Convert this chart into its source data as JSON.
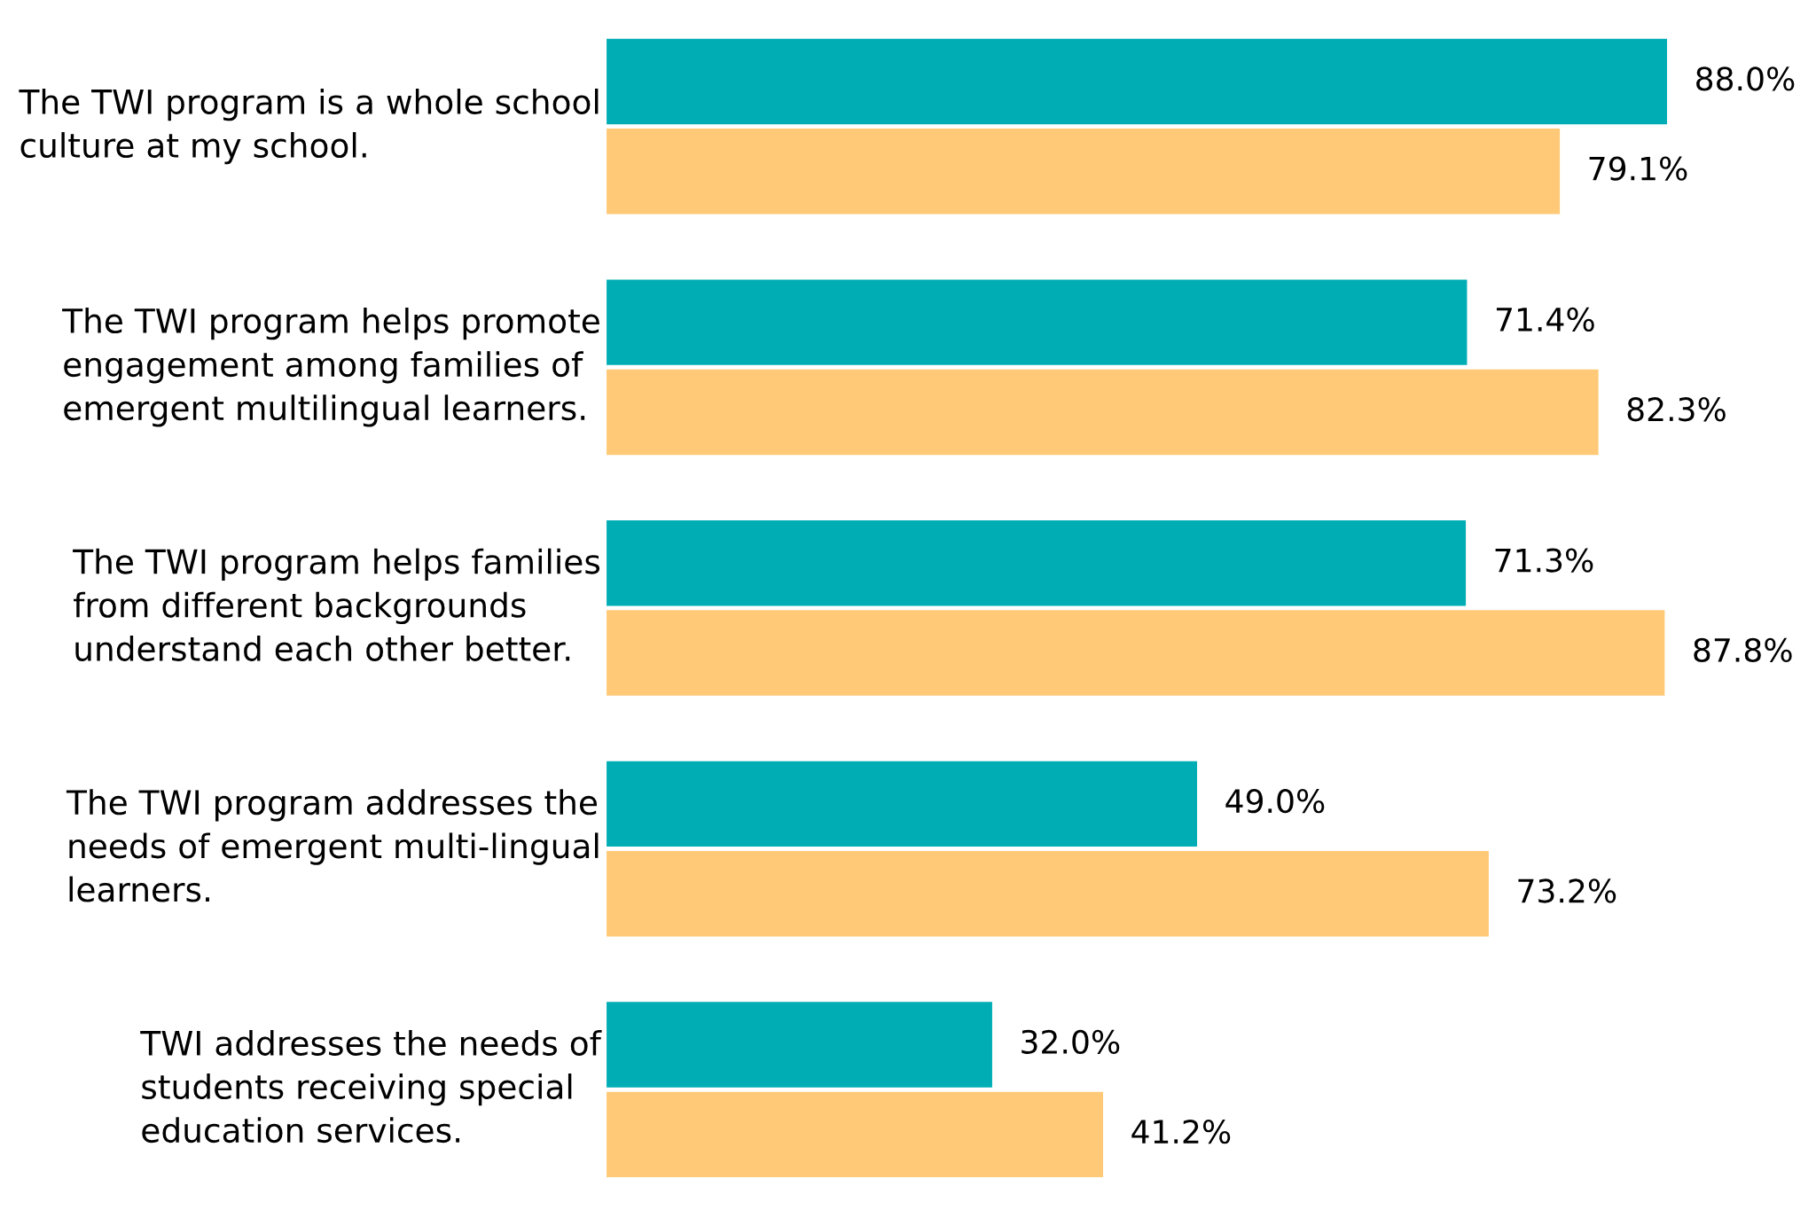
{
  "chart_data": {
    "type": "bar",
    "orientation": "horizontal",
    "grid": false,
    "legend": false,
    "categories": [
      "The TWI program is a whole school culture at my school.",
      "The TWI program helps promote engagement among families of emergent multilingual learners.",
      "The TWI program helps families from different backgrounds understand each other better.",
      "The TWI program addresses the needs of emergent multi-lingual learners.",
      "TWI addresses the needs of students receiving special education services."
    ],
    "series": [
      {
        "color": "#00adb5",
        "values": [
          88.0,
          71.4,
          71.3,
          49.0,
          32.0
        ],
        "value_labels": [
          "88.0%",
          "71.4%",
          "71.3%",
          "49.0%",
          "32.0%"
        ]
      },
      {
        "color": "#ffc977",
        "values": [
          79.1,
          82.3,
          87.8,
          73.2,
          41.2
        ],
        "value_labels": [
          "79.1%",
          "82.3%",
          "87.8%",
          "73.2%",
          "41.2%"
        ]
      }
    ]
  }
}
